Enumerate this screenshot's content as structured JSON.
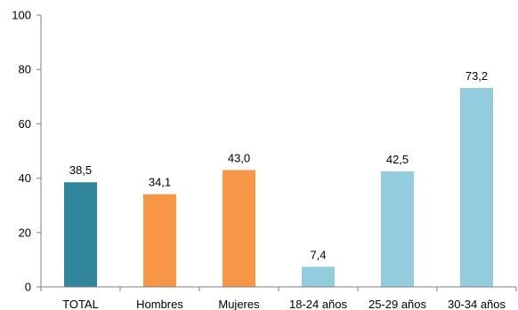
{
  "chart_data": {
    "type": "bar",
    "categories": [
      "TOTAL",
      "Hombres",
      "Mujeres",
      "18-24 años",
      "25-29 años",
      "30-34 años"
    ],
    "values": [
      38.5,
      34.1,
      43.0,
      7.4,
      42.5,
      73.2
    ],
    "data_labels": [
      "38,5",
      "34,1",
      "43,0",
      "7,4",
      "42,5",
      "73,2"
    ],
    "colors": [
      "#31859C",
      "#F79646",
      "#F79646",
      "#93CDDD",
      "#93CDDD",
      "#93CDDD"
    ],
    "ylim": [
      0,
      100
    ],
    "yticks": [
      0,
      20,
      40,
      60,
      80,
      100
    ],
    "title": "",
    "xlabel": "",
    "ylabel": "",
    "grid": false,
    "legend": false
  }
}
